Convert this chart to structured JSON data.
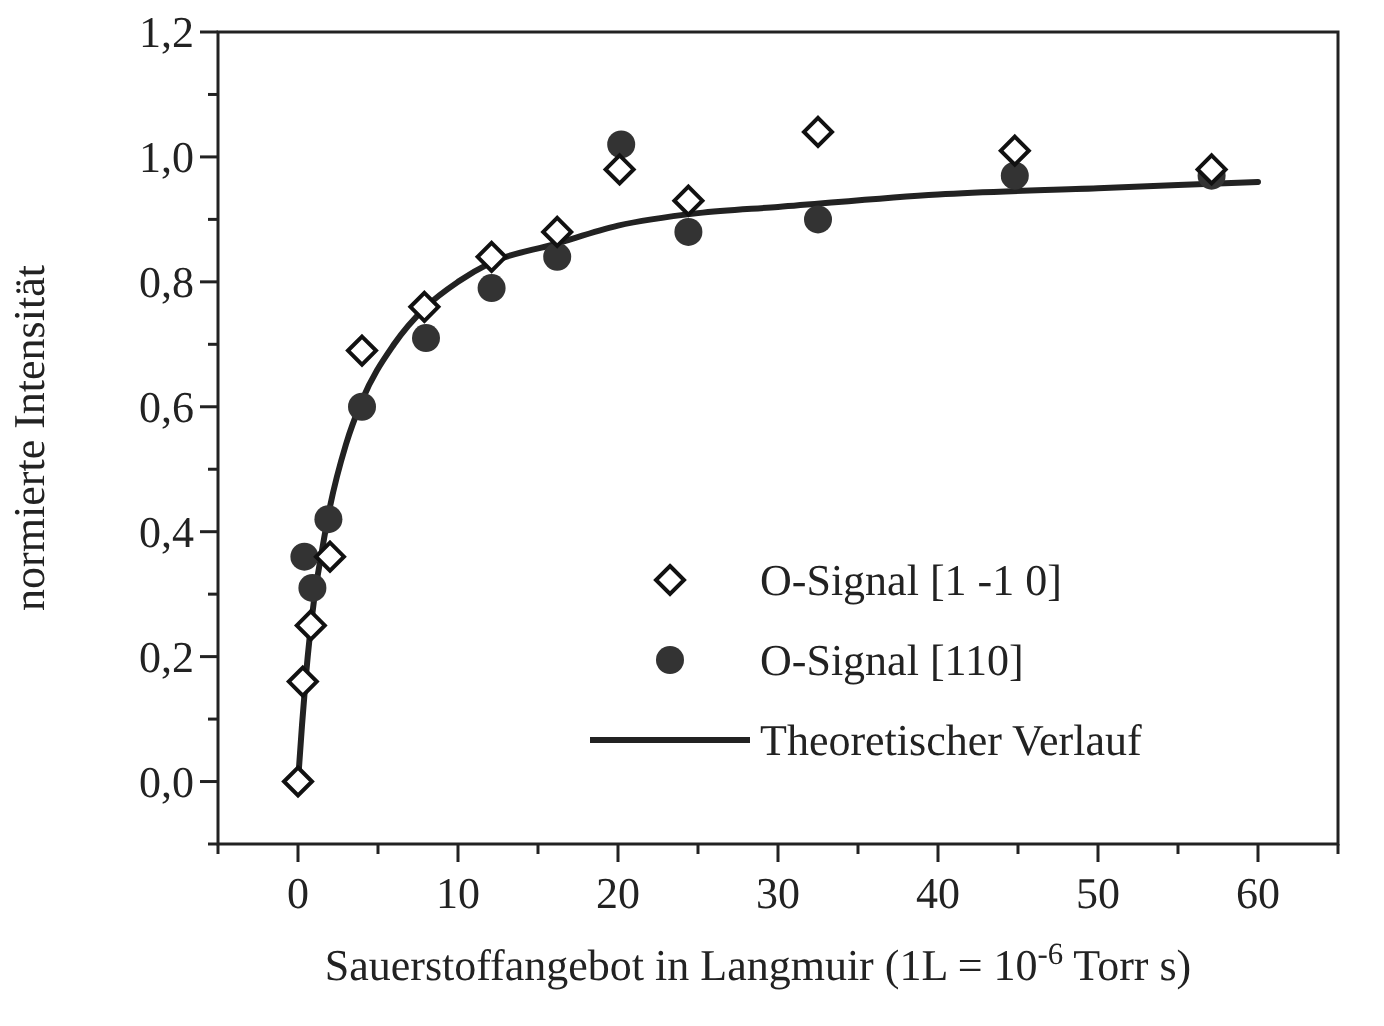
{
  "chart_data": {
    "type": "scatter",
    "xlabel": "Sauerstoffangebot in Langmuir (1L = 10$^{-6}$ Torr s)",
    "ylabel": "normierte Intensität",
    "xlim": [
      -5,
      65
    ],
    "ylim": [
      -0.1,
      1.2
    ],
    "xticks": [
      {
        "value": -5,
        "label": null
      },
      0,
      {
        "value": 5,
        "label": null
      },
      10,
      {
        "value": 15,
        "label": null
      },
      20,
      {
        "value": 25,
        "label": null
      },
      30,
      {
        "value": 35,
        "label": null
      },
      40,
      {
        "value": 45,
        "label": null
      },
      50,
      {
        "value": 55,
        "label": null
      },
      60,
      {
        "value": 65,
        "label": null
      }
    ],
    "yticks": [
      {
        "value": -0.1,
        "label": null
      },
      {
        "value": 0,
        "label": "0,0"
      },
      {
        "value": 0.1,
        "label": null
      },
      {
        "value": 0.2,
        "label": "0,2"
      },
      {
        "value": 0.3,
        "label": null
      },
      {
        "value": 0.4,
        "label": "0,4"
      },
      {
        "value": 0.5,
        "label": null
      },
      {
        "value": 0.6,
        "label": "0,6"
      },
      {
        "value": 0.7,
        "label": null
      },
      {
        "value": 0.8,
        "label": "0,8"
      },
      {
        "value": 0.9,
        "label": null
      },
      {
        "value": 1.0,
        "label": "1,0"
      },
      {
        "value": 1.1,
        "label": null
      },
      {
        "value": 1.2,
        "label": "1,2"
      }
    ],
    "grid": false,
    "legend": "bottom right",
    "series": [
      {
        "name": "O-Signal [1 -1 0]",
        "marker": "diamond",
        "color": "#111111",
        "x": [
          0,
          0.3,
          0.8,
          2,
          4,
          7.9,
          12.1,
          16.2,
          20.1,
          24.4,
          32.5,
          44.8,
          57.1
        ],
        "values": [
          0,
          0.16,
          0.25,
          0.36,
          0.69,
          0.76,
          0.84,
          0.88,
          0.98,
          0.93,
          1.04,
          1.01,
          0.98
        ]
      },
      {
        "name": "O-Signal [110]",
        "marker": "circle",
        "color": "#333333",
        "x": [
          0.4,
          0.9,
          1.9,
          4,
          8,
          12.1,
          16.2,
          20.2,
          24.4,
          32.5,
          44.8,
          57.1
        ],
        "values": [
          0.36,
          0.31,
          0.42,
          0.6,
          0.71,
          0.79,
          0.84,
          1.02,
          0.88,
          0.9,
          0.97,
          0.97
        ]
      },
      {
        "name": "Theoretischer Verlauf",
        "type": "line",
        "marker": "none",
        "line_style": "solid",
        "color": "#222222",
        "x": [
          0,
          0.25,
          0.5,
          1,
          1.5,
          2,
          3,
          4,
          6,
          8,
          10,
          12,
          16,
          20,
          25,
          30,
          40,
          50,
          60
        ],
        "values": [
          0,
          0.09,
          0.17,
          0.29,
          0.37,
          0.44,
          0.54,
          0.61,
          0.7,
          0.76,
          0.8,
          0.83,
          0.86,
          0.89,
          0.91,
          0.92,
          0.94,
          0.95,
          0.96
        ]
      }
    ]
  }
}
